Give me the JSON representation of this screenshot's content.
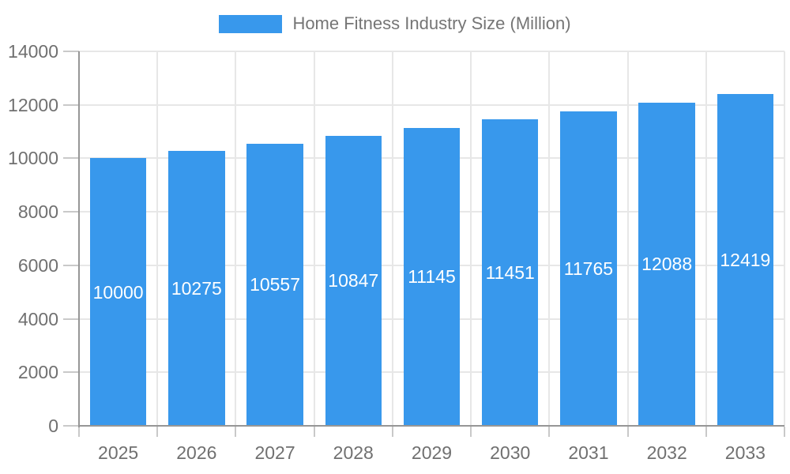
{
  "chart_data": {
    "type": "bar",
    "title": "Home Fitness Industry Size (Million)",
    "categories": [
      "2025",
      "2026",
      "2027",
      "2028",
      "2029",
      "2030",
      "2031",
      "2032",
      "2033"
    ],
    "values": [
      10000,
      10275,
      10557,
      10847,
      11145,
      11451,
      11765,
      12088,
      12419
    ],
    "yticks": [
      0,
      2000,
      4000,
      6000,
      8000,
      10000,
      12000,
      14000
    ],
    "ylim": [
      0,
      14000
    ],
    "xlabel": "",
    "ylabel": "",
    "legend_position": "top",
    "grid": true,
    "value_labels_inside_bars": true,
    "colors": {
      "bar": "#3898ec",
      "grid": "#e7e7e7",
      "axis": "#969696",
      "tick": "#c9c9c9",
      "text": "#707070",
      "legend_text": "#757575",
      "value_label": "#ffffff",
      "background": "#ffffff"
    }
  }
}
